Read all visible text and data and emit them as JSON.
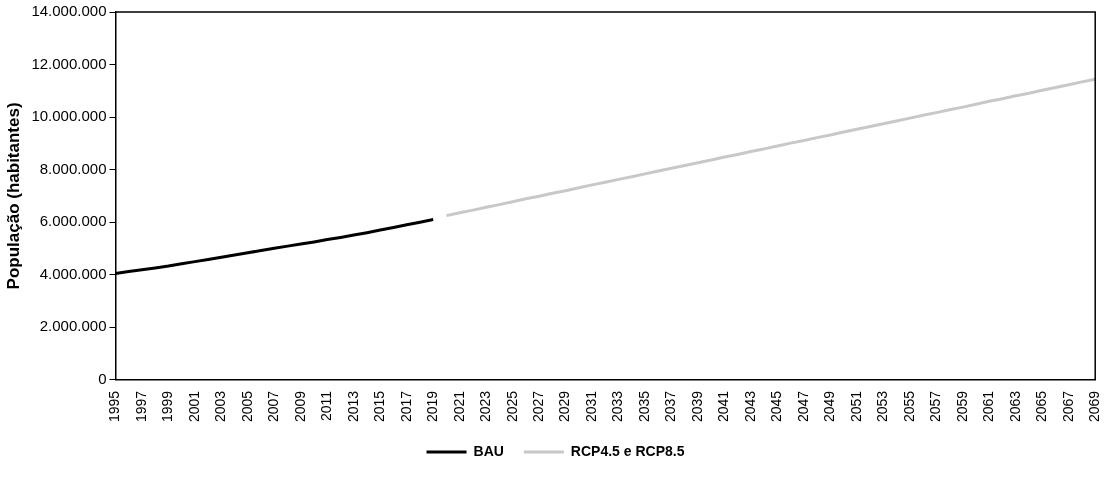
{
  "chart_data": {
    "type": "line",
    "ylabel": "População (habitantes)",
    "categories": [
      "1995",
      null,
      "1997",
      null,
      "1999",
      null,
      "2001",
      null,
      "2003",
      null,
      "2005",
      null,
      "2007",
      null,
      "2009",
      null,
      "2011",
      null,
      "2013",
      null,
      "2015",
      null,
      "2017",
      null,
      "2019",
      null,
      "2021",
      null,
      "2023",
      null,
      "2025",
      null,
      "2027",
      null,
      "2029",
      null,
      "2031",
      null,
      "2033",
      null,
      "2035",
      null,
      "2037",
      null,
      "2039",
      null,
      "2041",
      null,
      "2043",
      null,
      "2045",
      null,
      "2047",
      null,
      "2049",
      null,
      "2051",
      null,
      "2053",
      null,
      "2055",
      null,
      "2057",
      null,
      "2059",
      null,
      "2061",
      null,
      "2063",
      null,
      "2065",
      null,
      "2067",
      null,
      "2069"
    ],
    "series": [
      {
        "name": "BAU",
        "color": "#000000",
        "values": [
          4050000,
          4120000,
          4190000,
          4260000,
          4330000,
          4420000,
          4500000,
          4580000,
          4670000,
          4750000,
          4840000,
          4920000,
          5010000,
          5090000,
          5170000,
          5250000,
          5340000,
          5420000,
          5510000,
          5600000,
          5700000,
          5800000,
          5900000,
          6000000,
          6100000,
          null,
          null,
          null,
          null,
          null,
          null,
          null,
          null,
          null,
          null,
          null,
          null,
          null,
          null,
          null,
          null,
          null,
          null,
          null,
          null,
          null,
          null,
          null,
          null,
          null,
          null,
          null,
          null,
          null,
          null,
          null,
          null,
          null,
          null,
          null,
          null,
          null,
          null,
          null,
          null,
          null,
          null,
          null,
          null,
          null,
          null,
          null,
          null,
          null,
          null
        ]
      },
      {
        "name": "RCP4.5 e RCP8.5",
        "color": "#c8c8c8",
        "values": [
          null,
          null,
          null,
          null,
          null,
          null,
          null,
          null,
          null,
          null,
          null,
          null,
          null,
          null,
          null,
          null,
          null,
          null,
          null,
          null,
          null,
          null,
          null,
          null,
          null,
          6250000,
          6360000,
          6460000,
          6570000,
          6670000,
          6780000,
          6890000,
          6990000,
          7100000,
          7200000,
          7310000,
          7420000,
          7520000,
          7630000,
          7730000,
          7840000,
          7950000,
          8050000,
          8160000,
          8260000,
          8370000,
          8480000,
          8580000,
          8690000,
          8790000,
          8900000,
          9010000,
          9110000,
          9220000,
          9320000,
          9430000,
          9540000,
          9640000,
          9750000,
          9850000,
          9960000,
          10070000,
          10170000,
          10280000,
          10380000,
          10490000,
          10600000,
          10700000,
          10810000,
          10910000,
          11020000,
          11130000,
          11230000,
          11340000,
          11440000
        ]
      }
    ],
    "ylim": [
      0,
      14000000
    ],
    "yticks": [
      {
        "value": 0,
        "label": "0"
      },
      {
        "value": 2000000,
        "label": "2.000.000"
      },
      {
        "value": 4000000,
        "label": "4.000.000"
      },
      {
        "value": 6000000,
        "label": "6.000.000"
      },
      {
        "value": 8000000,
        "label": "8.000.000"
      },
      {
        "value": 10000000,
        "label": "10.000.000"
      },
      {
        "value": 12000000,
        "label": "12.000.000"
      },
      {
        "value": 14000000,
        "label": "14.000.000"
      }
    ],
    "legend": "bottom",
    "marker": "none",
    "line_style": "solid"
  }
}
